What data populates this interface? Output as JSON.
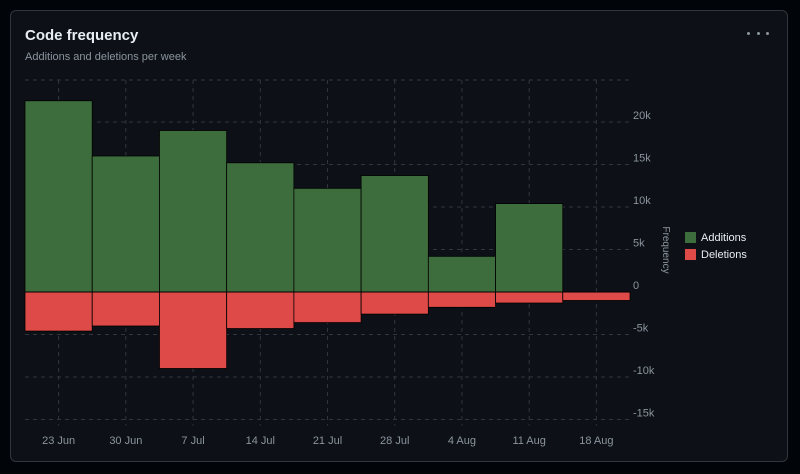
{
  "card": {
    "title": "Code frequency",
    "subtitle": "Additions and deletions per week"
  },
  "menu_icon": "more-horizontal-icon",
  "colors": {
    "additions": "#3e6d3d",
    "deletions": "#de4a48",
    "grid": "#30363d",
    "axis_text": "#8b949e",
    "zero_line": "#000000"
  },
  "chart_data": {
    "type": "bar",
    "categories": [
      "23 Jun",
      "30 Jun",
      "7 Jul",
      "14 Jul",
      "21 Jul",
      "28 Jul",
      "4 Aug",
      "11 Aug",
      "18 Aug"
    ],
    "series": [
      {
        "name": "Additions",
        "values": [
          22500,
          16000,
          19000,
          15200,
          12200,
          13700,
          4200,
          10400,
          0
        ]
      },
      {
        "name": "Deletions",
        "values": [
          -4600,
          -4000,
          -9000,
          -4300,
          -3600,
          -2600,
          -1800,
          -1300,
          -1000
        ]
      }
    ],
    "ylabel": "Frequency",
    "y_ticks": [
      "20k",
      "15k",
      "10k",
      "5k",
      "0",
      "-5k",
      "-10k",
      "-15k"
    ],
    "y_tick_values": [
      20000,
      15000,
      10000,
      5000,
      0,
      -5000,
      -10000,
      -15000
    ],
    "ylim": [
      -15000,
      25000
    ],
    "grid": true,
    "legend_position": "right",
    "stacked": true
  }
}
